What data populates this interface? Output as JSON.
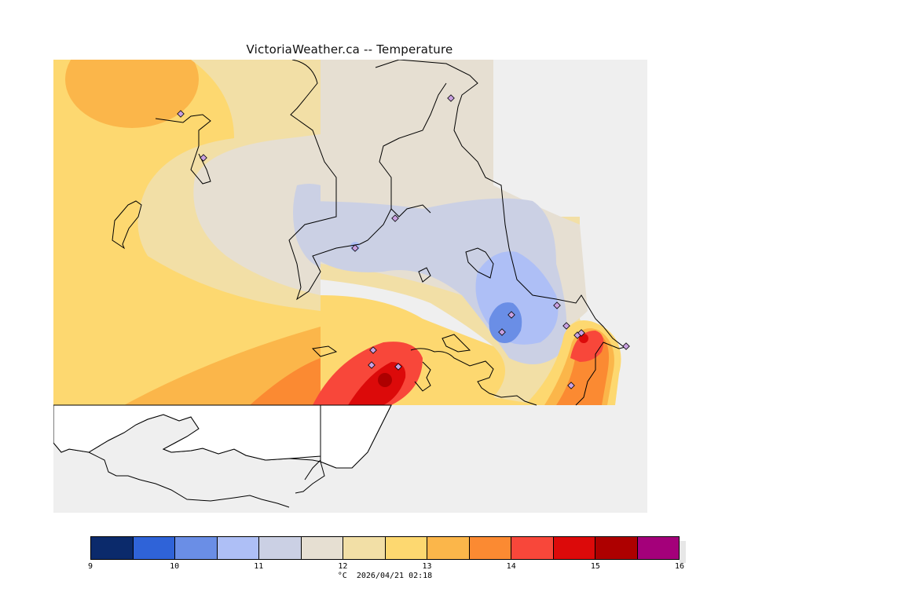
{
  "title": "VictoriaWeather.ca -- Temperature",
  "legend": {
    "colors": [
      "#0b2a6b",
      "#2f63d8",
      "#6a8ee6",
      "#aebff6",
      "#cbd0e4",
      "#e6dfd2",
      "#f2dfa6",
      "#fdd870",
      "#fbb64a",
      "#fb8a32",
      "#f8473a",
      "#dc0a0a",
      "#ad0000",
      "#a4007a"
    ],
    "ticks": [
      "9",
      "10",
      "11",
      "12",
      "13",
      "14",
      "15",
      "16"
    ],
    "unit": "°C",
    "timestamp": "2026/04/21 02:18"
  }
}
